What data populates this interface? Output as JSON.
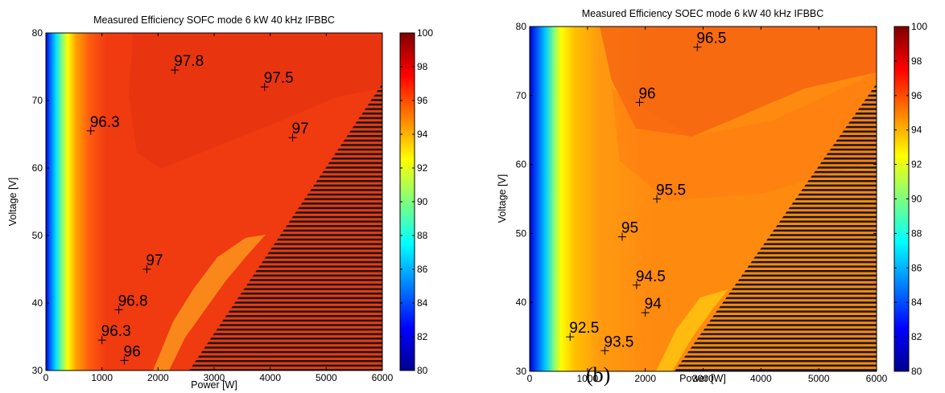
{
  "figure": {
    "caption": "(b)"
  },
  "chart_data": [
    {
      "type": "heatmap",
      "title": "Measured Efficiency SOFC mode 6 kW 40 kHz IFBBC",
      "xlabel": "Power [W]",
      "ylabel": "Voltage [V]",
      "xlim": [
        0,
        6000
      ],
      "ylim": [
        30,
        80
      ],
      "x_ticks": [
        0,
        1000,
        2000,
        3000,
        4000,
        5000,
        6000
      ],
      "y_ticks": [
        30,
        40,
        50,
        60,
        70,
        80
      ],
      "colorbar": {
        "min": 80,
        "max": 100,
        "ticks": [
          80,
          82,
          84,
          86,
          88,
          90,
          92,
          94,
          96,
          98,
          100
        ],
        "colormap": "jet"
      },
      "hatched_region": {
        "description_points": [
          [
            2550,
            30
          ],
          [
            6000,
            75
          ],
          [
            6000,
            30
          ]
        ]
      },
      "points": [
        {
          "x": 2300,
          "y": 74.5,
          "label": "97.8"
        },
        {
          "x": 3900,
          "y": 72,
          "label": "97.5"
        },
        {
          "x": 800,
          "y": 65.5,
          "label": "96.3"
        },
        {
          "x": 4400,
          "y": 64.5,
          "label": "97"
        },
        {
          "x": 1800,
          "y": 45,
          "label": "97"
        },
        {
          "x": 1300,
          "y": 39,
          "label": "96.8"
        },
        {
          "x": 1000,
          "y": 34.5,
          "label": "96.3"
        },
        {
          "x": 1400,
          "y": 31.5,
          "label": "96"
        }
      ]
    },
    {
      "type": "heatmap",
      "title": "Measured Efficiency SOEC mode 6 kW 40 kHz IFBBC",
      "xlabel": "Power [W]",
      "ylabel": "Voltage [V]",
      "xlim": [
        0,
        6000
      ],
      "ylim": [
        30,
        80
      ],
      "x_ticks": [
        0,
        1000,
        2000,
        3000,
        4000,
        5000,
        6000
      ],
      "y_ticks": [
        30,
        40,
        50,
        60,
        70,
        80
      ],
      "colorbar": {
        "min": 80,
        "max": 100,
        "ticks": [
          80,
          82,
          84,
          86,
          88,
          90,
          92,
          94,
          96,
          98,
          100
        ],
        "colormap": "jet"
      },
      "hatched_region": {
        "description_points": [
          [
            2550,
            30
          ],
          [
            6000,
            75
          ],
          [
            6000,
            30
          ]
        ]
      },
      "points": [
        {
          "x": 2900,
          "y": 77,
          "label": "96.5"
        },
        {
          "x": 1900,
          "y": 69,
          "label": "96"
        },
        {
          "x": 2200,
          "y": 55,
          "label": "95.5"
        },
        {
          "x": 1600,
          "y": 49.5,
          "label": "95"
        },
        {
          "x": 1850,
          "y": 42.5,
          "label": "94.5"
        },
        {
          "x": 2000,
          "y": 38.5,
          "label": "94"
        },
        {
          "x": 700,
          "y": 35,
          "label": "92.5"
        },
        {
          "x": 1300,
          "y": 33,
          "label": "93.5"
        }
      ]
    }
  ]
}
